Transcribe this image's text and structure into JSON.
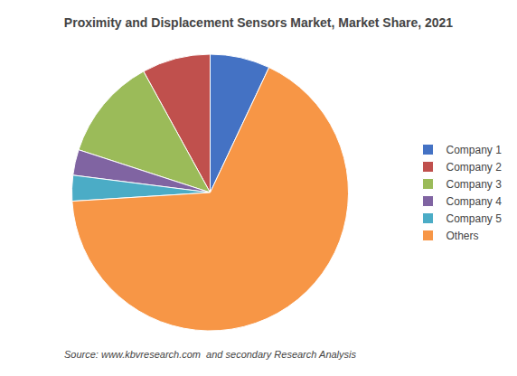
{
  "chart_data": {
    "type": "pie",
    "title": "Proximity and Displacement Sensors Market, Market Share, 2021",
    "categories": [
      "Company 1",
      "Company 2",
      "Company 3",
      "Company 4",
      "Company 5",
      "Others"
    ],
    "values": [
      7,
      8,
      12,
      3,
      3,
      67
    ],
    "colors": [
      "#4472C4",
      "#C0504D",
      "#9BBB59",
      "#8064A2",
      "#4BACC6",
      "#F79646"
    ],
    "annotations": [
      "Source: www.kbvresearch.com  and secondary Research Analysis"
    ],
    "legend": "right"
  }
}
